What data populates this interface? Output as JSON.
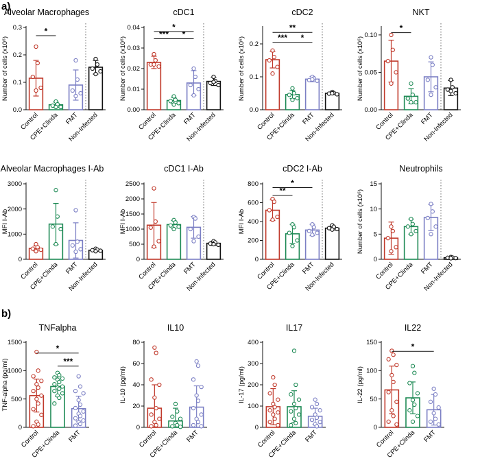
{
  "figure": {
    "panel_labels": [
      "a)",
      "b)"
    ]
  },
  "colors": {
    "Control": "#c0392b",
    "CPE+Clinda": "#1e8a55",
    "FMT": "#7b7fc4",
    "Non-Infected": "#111111"
  },
  "chart_data": [
    {
      "type": "bar",
      "title": "Alveolar Macrophages",
      "ylabel": "Number of cells (x10⁶)",
      "ylim": [
        0,
        0.3
      ],
      "yticks": [
        "0.0",
        "0.1",
        "0.2",
        "0.3"
      ],
      "categories": [
        "Control",
        "CPE+Clinda",
        "FMT",
        "Non-Infected"
      ],
      "values": [
        0.115,
        0.018,
        0.09,
        0.155
      ],
      "errors": [
        0.065,
        0.01,
        0.055,
        0.025
      ],
      "points": [
        [
          0.23,
          0.17,
          0.12,
          0.08,
          0.07
        ],
        [
          0.03,
          0.02,
          0.015,
          0.01,
          0.01
        ],
        [
          0.18,
          0.11,
          0.07,
          0.06,
          0.05
        ],
        [
          0.185,
          0.165,
          0.15,
          0.14,
          0.13
        ]
      ],
      "dashed_after": 2,
      "significance": [
        {
          "from": 0,
          "to": 1,
          "label": "*",
          "y": 0.27
        }
      ]
    },
    {
      "type": "bar",
      "title": "cDC1",
      "ylabel": "Number of cells (x10⁶)",
      "ylim": [
        0,
        0.04
      ],
      "yticks": [
        "0.00",
        "0.01",
        "0.02",
        "0.03",
        "0.04"
      ],
      "categories": [
        "Control",
        "CPE+Clinda",
        "FMT",
        "Non-Infected"
      ],
      "values": [
        0.023,
        0.0045,
        0.013,
        0.0138
      ],
      "errors": [
        0.003,
        0.0015,
        0.006,
        0.002
      ],
      "points": [
        [
          0.027,
          0.024,
          0.022,
          0.021,
          0.022
        ],
        [
          0.0065,
          0.0048,
          0.0042,
          0.0032,
          0.0025
        ],
        [
          0.02,
          0.016,
          0.012,
          0.01,
          0.007
        ],
        [
          0.016,
          0.014,
          0.013,
          0.012,
          0.0135
        ]
      ],
      "dashed_after": 2,
      "significance": [
        {
          "from": 0,
          "to": 1,
          "label": "***",
          "y": 0.0345
        },
        {
          "from": 0,
          "to": 2,
          "label": "*",
          "y": 0.038
        },
        {
          "from": 1,
          "to": 2,
          "label": "*",
          "y": 0.0345
        }
      ]
    },
    {
      "type": "bar",
      "title": "cDC2",
      "ylabel": "Number of cells (x10⁶)",
      "ylim": [
        0,
        0.25
      ],
      "yticks": [
        "0.0",
        "0.1",
        "0.2"
      ],
      "categories": [
        "Control",
        "CPE+Clinda",
        "FMT",
        "Non-Infected"
      ],
      "values": [
        0.152,
        0.046,
        0.093,
        0.05
      ],
      "errors": [
        0.025,
        0.012,
        0.008,
        0.004
      ],
      "points": [
        [
          0.18,
          0.16,
          0.15,
          0.13,
          0.11
        ],
        [
          0.065,
          0.05,
          0.045,
          0.035,
          0.03
        ],
        [
          0.1,
          0.095,
          0.09,
          0.088,
          0.092
        ],
        [
          0.054,
          0.051,
          0.049,
          0.047,
          0.05
        ]
      ],
      "dashed_after": 2,
      "significance": [
        {
          "from": 0,
          "to": 1,
          "label": "***",
          "y": 0.205
        },
        {
          "from": 0,
          "to": 2,
          "label": "**",
          "y": 0.235
        },
        {
          "from": 1,
          "to": 2,
          "label": "*",
          "y": 0.205
        }
      ]
    },
    {
      "type": "bar",
      "title": "NKT",
      "ylabel": "Number of cells (x10⁶)",
      "ylim": [
        0,
        0.11
      ],
      "yticks": [
        "0.00",
        "0.05",
        "0.10"
      ],
      "categories": [
        "Control",
        "CPE+Clinda",
        "FMT",
        "Non-Infected"
      ],
      "values": [
        0.065,
        0.018,
        0.044,
        0.029
      ],
      "errors": [
        0.028,
        0.01,
        0.02,
        0.01
      ],
      "points": [
        [
          0.1,
          0.08,
          0.065,
          0.05,
          0.035
        ],
        [
          0.035,
          0.02,
          0.015,
          0.01,
          0.01
        ],
        [
          0.07,
          0.06,
          0.04,
          0.03,
          0.02
        ],
        [
          0.04,
          0.03,
          0.027,
          0.022,
          0.025
        ]
      ],
      "dashed_after": 2,
      "significance": [
        {
          "from": 0,
          "to": 1,
          "label": "*",
          "y": 0.103
        }
      ]
    },
    {
      "type": "bar",
      "title": "Alveolar Macrophages I-Ab",
      "ylabel": "MFI I-Ab",
      "ylim": [
        0,
        3000
      ],
      "yticks": [
        "0",
        "1000",
        "2000",
        "3000"
      ],
      "categories": [
        "Control",
        "CPE+Clinda",
        "FMT",
        "Non-Infected"
      ],
      "values": [
        430,
        1400,
        750,
        360
      ],
      "errors": [
        100,
        820,
        700,
        40
      ],
      "points": [
        [
          600,
          480,
          420,
          380,
          320
        ],
        [
          2750,
          1700,
          1300,
          1200,
          600
        ],
        [
          1950,
          700,
          550,
          400,
          300
        ],
        [
          420,
          380,
          360,
          340,
          320
        ]
      ],
      "dashed_after": 2,
      "significance": []
    },
    {
      "type": "bar",
      "title": "cDC1 I-Ab",
      "ylabel": "MFI I-Ab",
      "ylim": [
        0,
        2500
      ],
      "yticks": [
        "0",
        "500",
        "1000",
        "1500",
        "2000",
        "2500"
      ],
      "categories": [
        "Control",
        "CPE+Clinda",
        "FMT",
        "Non-Infected"
      ],
      "values": [
        1130,
        1150,
        1060,
        530
      ],
      "errors": [
        750,
        130,
        360,
        70
      ],
      "points": [
        [
          2350,
          1250,
          1050,
          600,
          420
        ],
        [
          1300,
          1220,
          1120,
          1080,
          1000
        ],
        [
          1400,
          1350,
          1000,
          750,
          600
        ],
        [
          600,
          560,
          520,
          480,
          500
        ]
      ],
      "dashed_after": 2,
      "significance": []
    },
    {
      "type": "bar",
      "title": "cDC2 I-Ab",
      "ylabel": "MFI I-Ab",
      "ylim": [
        0,
        800
      ],
      "yticks": [
        "0",
        "200",
        "400",
        "600",
        "800"
      ],
      "categories": [
        "Control",
        "CPE+Clinda",
        "FMT",
        "Non-Infected"
      ],
      "values": [
        520,
        270,
        310,
        330
      ],
      "errors": [
        110,
        100,
        60,
        20
      ],
      "points": [
        [
          640,
          610,
          520,
          450,
          420
        ],
        [
          370,
          340,
          280,
          200,
          140
        ],
        [
          370,
          340,
          300,
          280,
          260
        ],
        [
          360,
          345,
          330,
          320,
          315
        ]
      ],
      "dashed_after": 2,
      "significance": [
        {
          "from": 0,
          "to": 1,
          "label": "**",
          "y": 680
        },
        {
          "from": 0,
          "to": 2,
          "label": "*",
          "y": 760
        }
      ]
    },
    {
      "type": "bar",
      "title": "Neutrophils",
      "ylabel": "Number of cells (x10⁶)",
      "ylim": [
        0,
        15
      ],
      "yticks": [
        "0",
        "5",
        "10",
        "15"
      ],
      "categories": [
        "Control",
        "CPE+Clinda",
        "FMT",
        "Non-Infected"
      ],
      "values": [
        4.2,
        6.5,
        8.3,
        0.3
      ],
      "errors": [
        3.2,
        1.5,
        2.6,
        0.15
      ],
      "points": [
        [
          6.5,
          5.6,
          4.2,
          2.4,
          1.6
        ],
        [
          8.0,
          7.0,
          6.5,
          5.6,
          5.0
        ],
        [
          11.0,
          9.5,
          8.2,
          6.5,
          5.0
        ],
        [
          0.45,
          0.35,
          0.3,
          0.25,
          0.2
        ]
      ],
      "dashed_after": 2,
      "significance": []
    },
    {
      "type": "bar",
      "title": "TNFalpha",
      "ylabel": "TNF-alpha (pg/ml)",
      "ylim": [
        0,
        1500
      ],
      "yticks": [
        "0",
        "500",
        "1000",
        "1500"
      ],
      "categories": [
        "Control",
        "CPE+Clinda",
        "FMT"
      ],
      "values": [
        560,
        720,
        330
      ],
      "errors": [
        290,
        170,
        220
      ],
      "points": [
        [
          1330,
          1000,
          900,
          820,
          760,
          700,
          640,
          560,
          500,
          420,
          320,
          220,
          100,
          50,
          20
        ],
        [
          960,
          920,
          880,
          860,
          840,
          800,
          760,
          720,
          700,
          680,
          640,
          600,
          560,
          520,
          420
        ],
        [
          900,
          720,
          640,
          600,
          480,
          400,
          340,
          280,
          240,
          200,
          160,
          120,
          90,
          60,
          30
        ]
      ],
      "dashed_after": null,
      "significance": [
        {
          "from": 0,
          "to": 2,
          "label": "*",
          "y": 1310
        },
        {
          "from": 1,
          "to": 2,
          "label": "***",
          "y": 1080
        }
      ]
    },
    {
      "type": "bar",
      "title": "IL10",
      "ylabel": "IL-10 (pg/ml)",
      "ylim": [
        0,
        80
      ],
      "yticks": [
        "0",
        "20",
        "40",
        "60",
        "80"
      ],
      "categories": [
        "Control",
        "CPE+Clinda",
        "FMT"
      ],
      "values": [
        18,
        6,
        19
      ],
      "errors": [
        22,
        12,
        20
      ],
      "points": [
        [
          75,
          70,
          45,
          40,
          28,
          18,
          12,
          8,
          5,
          2,
          1
        ],
        [
          22,
          15,
          10,
          8,
          4,
          2,
          1,
          0.5
        ],
        [
          62,
          58,
          45,
          38,
          30,
          25,
          18,
          12,
          8,
          5,
          2,
          1
        ]
      ],
      "dashed_after": null,
      "significance": []
    },
    {
      "type": "bar",
      "title": "IL17",
      "ylabel": "IL-17 (pg/ml)",
      "ylim": [
        0,
        400
      ],
      "yticks": [
        "0",
        "100",
        "200",
        "300",
        "400"
      ],
      "categories": [
        "Control",
        "CPE+Clinda",
        "FMT"
      ],
      "values": [
        97,
        97,
        52
      ],
      "errors": [
        85,
        75,
        38
      ],
      "points": [
        [
          235,
          200,
          160,
          130,
          110,
          95,
          80,
          70,
          60,
          40,
          25,
          10
        ],
        [
          360,
          200,
          155,
          130,
          110,
          90,
          75,
          60,
          40,
          20,
          10
        ],
        [
          130,
          110,
          95,
          80,
          60,
          45,
          35,
          25,
          15,
          5
        ]
      ],
      "dashed_after": null,
      "significance": []
    },
    {
      "type": "bar",
      "title": "IL22",
      "ylabel": "IL-22 (pg/ml)",
      "ylim": [
        0,
        150
      ],
      "yticks": [
        "0",
        "50",
        "100",
        "150"
      ],
      "categories": [
        "Control",
        "CPE+Clinda",
        "FMT"
      ],
      "values": [
        66,
        52,
        31
      ],
      "errors": [
        42,
        28,
        27
      ],
      "points": [
        [
          135,
          128,
          120,
          110,
          92,
          80,
          62,
          45,
          30,
          20,
          10,
          5
        ],
        [
          108,
          96,
          78,
          60,
          48,
          40,
          30,
          20,
          10
        ],
        [
          68,
          58,
          45,
          35,
          25,
          15,
          10,
          5
        ]
      ],
      "dashed_after": null,
      "significance": [
        {
          "from": 0,
          "to": 2,
          "label": "*",
          "y": 134
        }
      ]
    }
  ]
}
